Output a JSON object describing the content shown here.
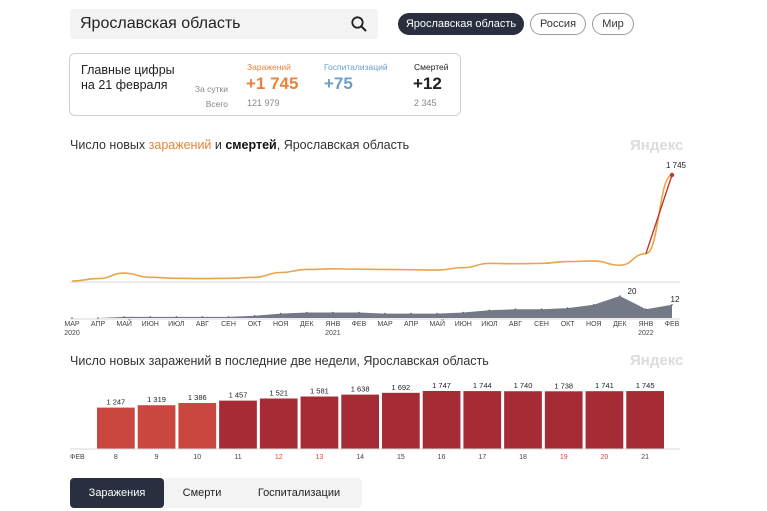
{
  "search": {
    "value": "Ярославская область"
  },
  "region_buttons": [
    {
      "label": "Ярославская область",
      "active": true
    },
    {
      "label": "Россия",
      "active": false
    },
    {
      "label": "Мир",
      "active": false
    }
  ],
  "summary": {
    "title_line1": "Главные цифры",
    "title_line2": "на 21 февраля",
    "row_day": "За сутки",
    "row_total": "Всего",
    "infections": {
      "label": "Заражений",
      "day": "+1 745",
      "total": "121 979",
      "color": "#e8843a"
    },
    "hospital": {
      "label": "Госпитализаций",
      "day": "+75",
      "total": "",
      "color": "#6aa0c8"
    },
    "deaths": {
      "label": "Смертей",
      "day": "+12",
      "total": "2 345",
      "color": "#222222"
    }
  },
  "chart1": {
    "title_prefix": "Число новых ",
    "title_infections": "заражений",
    "title_middle": " и ",
    "title_deaths": "смертей",
    "title_suffix": ", Ярославская область",
    "watermark": "Яндекс",
    "peak_label": "1 745",
    "deaths_peak_label": "20",
    "deaths_last_label": "12",
    "months": [
      "МАР",
      "АПР",
      "МАЙ",
      "ИЮН",
      "ИЮЛ",
      "АВГ",
      "СЕН",
      "ОКТ",
      "НОЯ",
      "ДЕК",
      "ЯНВ",
      "ФЕВ",
      "МАР",
      "АПР",
      "МАЙ",
      "ИЮН",
      "ИЮЛ",
      "АВГ",
      "СЕН",
      "ОКТ",
      "НОЯ",
      "ДЕК",
      "ЯНВ",
      "ФЕВ"
    ],
    "year_2020": "2020",
    "year_2021": "2021",
    "year_2022": "2022"
  },
  "chart2": {
    "title": "Число новых заражений в последние две недели, Ярославская область",
    "watermark": "Яндекс",
    "month_label": "ФЕВ"
  },
  "chart_data": [
    {
      "type": "line",
      "title": "Число новых заражений и смертей, Ярославская область",
      "x": [
        "2020-03",
        "2020-04",
        "2020-05",
        "2020-06",
        "2020-07",
        "2020-08",
        "2020-09",
        "2020-10",
        "2020-11",
        "2020-12",
        "2021-01",
        "2021-02",
        "2021-03",
        "2021-04",
        "2021-05",
        "2021-06",
        "2021-07",
        "2021-08",
        "2021-09",
        "2021-10",
        "2021-11",
        "2021-12",
        "2022-01",
        "2022-02-21"
      ],
      "series": [
        {
          "name": "заражений",
          "values": [
            0,
            40,
            130,
            60,
            45,
            40,
            45,
            60,
            140,
            190,
            200,
            195,
            190,
            185,
            180,
            220,
            290,
            285,
            290,
            320,
            330,
            260,
            450,
            1745
          ],
          "color": "#e8a54a"
        },
        {
          "name": "смертей",
          "values": [
            0,
            0,
            1,
            1,
            1,
            1,
            1,
            2,
            4,
            5,
            5,
            5,
            4,
            4,
            4,
            5,
            7,
            8,
            8,
            9,
            12,
            20,
            8,
            12
          ],
          "color": "#5a6172"
        }
      ]
    },
    {
      "type": "bar",
      "title": "Число новых заражений в последние две недели, Ярославская область",
      "categories": [
        "8",
        "9",
        "10",
        "11",
        "12",
        "13",
        "14",
        "15",
        "16",
        "17",
        "18",
        "19",
        "20",
        "21"
      ],
      "values": [
        1247,
        1319,
        1386,
        1457,
        1521,
        1581,
        1638,
        1692,
        1747,
        1744,
        1740,
        1738,
        1741,
        1745
      ],
      "labels": [
        "1 247",
        "1 319",
        "1 386",
        "1 457",
        "1 521",
        "1 581",
        "1 638",
        "1 692",
        "1 747",
        "1 744",
        "1 740",
        "1 738",
        "1 741",
        "1 745"
      ],
      "weekend": [
        false,
        false,
        false,
        false,
        true,
        true,
        false,
        false,
        false,
        false,
        false,
        true,
        true,
        false
      ],
      "bar_colors": [
        "#c9473f",
        "#c9473f",
        "#c9473f",
        "#a52b35",
        "#a52b35",
        "#a52b35",
        "#a52b35",
        "#a52b35",
        "#a52b35",
        "#a52b35",
        "#a52b35",
        "#a52b35",
        "#a52b35",
        "#a52b35"
      ],
      "weekend_color": "#e0443a"
    }
  ],
  "tabs": [
    {
      "label": "Заражения",
      "active": true
    },
    {
      "label": "Смерти",
      "active": false
    },
    {
      "label": "Госпитализации",
      "active": false
    }
  ]
}
